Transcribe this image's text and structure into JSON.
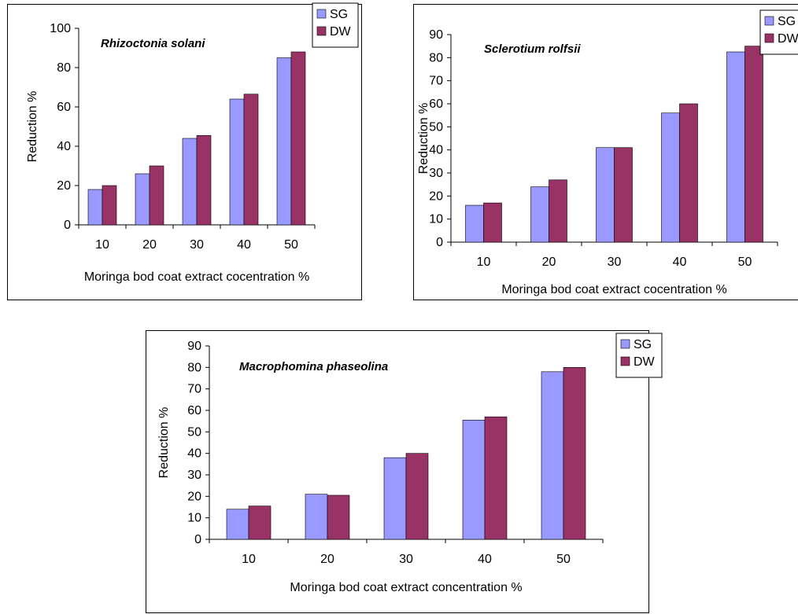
{
  "chart_data": [
    {
      "type": "bar",
      "title": "Rhizoctonia solani",
      "xlabel": "Moringa bod coat extract cocentration %",
      "ylabel": "Reduction %",
      "ylim": [
        0,
        100
      ],
      "yticks": [
        0,
        20,
        40,
        60,
        80,
        100
      ],
      "categories": [
        "10",
        "20",
        "30",
        "40",
        "50"
      ],
      "series": [
        {
          "name": "SG",
          "color": "#9999ff",
          "values": [
            18,
            26,
            44,
            64,
            85
          ]
        },
        {
          "name": "DW",
          "color": "#993366",
          "values": [
            20,
            30,
            45.5,
            66.5,
            88
          ]
        }
      ],
      "grid": false,
      "legend": "top-right"
    },
    {
      "type": "bar",
      "title": "Sclerotium rolfsii",
      "xlabel": "Moringa bod coat extract cocentration %",
      "ylabel": "Reduction %",
      "ylim": [
        0,
        90
      ],
      "yticks": [
        0,
        10,
        20,
        30,
        40,
        50,
        60,
        70,
        80,
        90
      ],
      "categories": [
        "10",
        "20",
        "30",
        "40",
        "50"
      ],
      "series": [
        {
          "name": "SG",
          "color": "#9999ff",
          "values": [
            16,
            24,
            41,
            56,
            82.5
          ]
        },
        {
          "name": "DW",
          "color": "#993366",
          "values": [
            17,
            27,
            41,
            60,
            85
          ]
        }
      ],
      "grid": false,
      "legend": "top-right"
    },
    {
      "type": "bar",
      "title": "Macrophomina phaseolina",
      "xlabel": "Moringa bod coat extract concentration %",
      "ylabel": "Reduction %",
      "ylim": [
        0,
        90
      ],
      "yticks": [
        0,
        10,
        20,
        30,
        40,
        50,
        60,
        70,
        80,
        90
      ],
      "categories": [
        "10",
        "20",
        "30",
        "40",
        "50"
      ],
      "series": [
        {
          "name": "SG",
          "color": "#9999ff",
          "values": [
            14,
            21,
            38,
            55.5,
            78
          ]
        },
        {
          "name": "DW",
          "color": "#993366",
          "values": [
            15.5,
            20.5,
            40,
            57,
            80
          ]
        }
      ],
      "grid": false,
      "legend": "top-right"
    }
  ]
}
